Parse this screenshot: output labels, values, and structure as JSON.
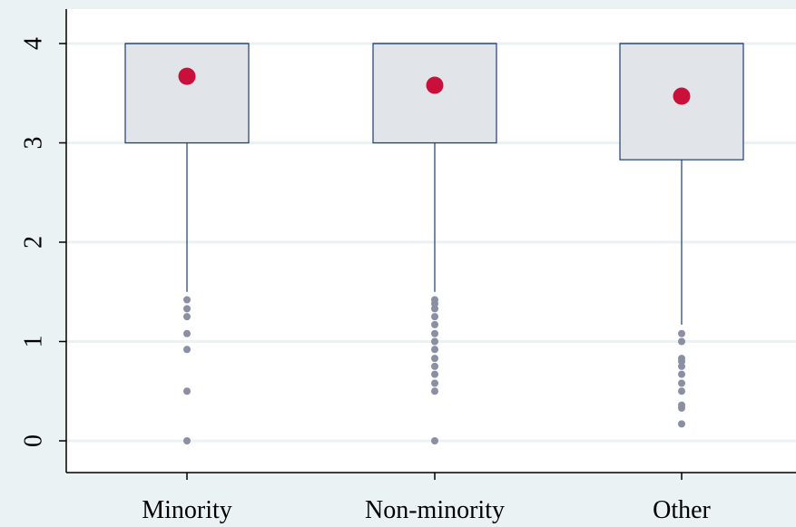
{
  "chart_data": {
    "type": "boxplot",
    "title": "",
    "xlabel": "",
    "ylabel": "",
    "ylim": [
      0,
      4
    ],
    "yticks": [
      "0",
      "1",
      "2",
      "3",
      "4"
    ],
    "grid": true,
    "categories": [
      "Minority",
      "Non-minority",
      "Other"
    ],
    "boxes": [
      {
        "category": "Minority",
        "q1": 3.0,
        "median": 4.0,
        "q3": 4.0,
        "whisker_low": 1.5,
        "whisker_high": 4.0,
        "mean": 3.67,
        "outliers": [
          1.42,
          1.33,
          1.25,
          1.08,
          0.92,
          0.5,
          0.0
        ]
      },
      {
        "category": "Non-minority",
        "q1": 3.0,
        "median": 4.0,
        "q3": 4.0,
        "whisker_low": 1.5,
        "whisker_high": 4.0,
        "mean": 3.58,
        "outliers": [
          1.42,
          1.38,
          1.33,
          1.25,
          1.17,
          1.08,
          1.0,
          0.92,
          0.83,
          0.75,
          0.67,
          0.58,
          0.5,
          0.0
        ]
      },
      {
        "category": "Other",
        "q1": 2.83,
        "median": 4.0,
        "q3": 4.0,
        "whisker_low": 1.17,
        "whisker_high": 4.0,
        "mean": 3.47,
        "outliers": [
          1.08,
          1.0,
          0.83,
          0.8,
          0.75,
          0.67,
          0.58,
          0.5,
          0.36,
          0.33,
          0.17
        ]
      }
    ],
    "colors": {
      "background": "#eaf2f3",
      "plot_area": "#ffffff",
      "gridline": "#eaf2f3",
      "box_fill": "#e1e5ea",
      "box_stroke": "#1a3e6e",
      "whisker": "#1a3e6e",
      "mean_marker": "#c8103b",
      "outlier": "#8a8fa3",
      "axis": "#000000"
    }
  }
}
